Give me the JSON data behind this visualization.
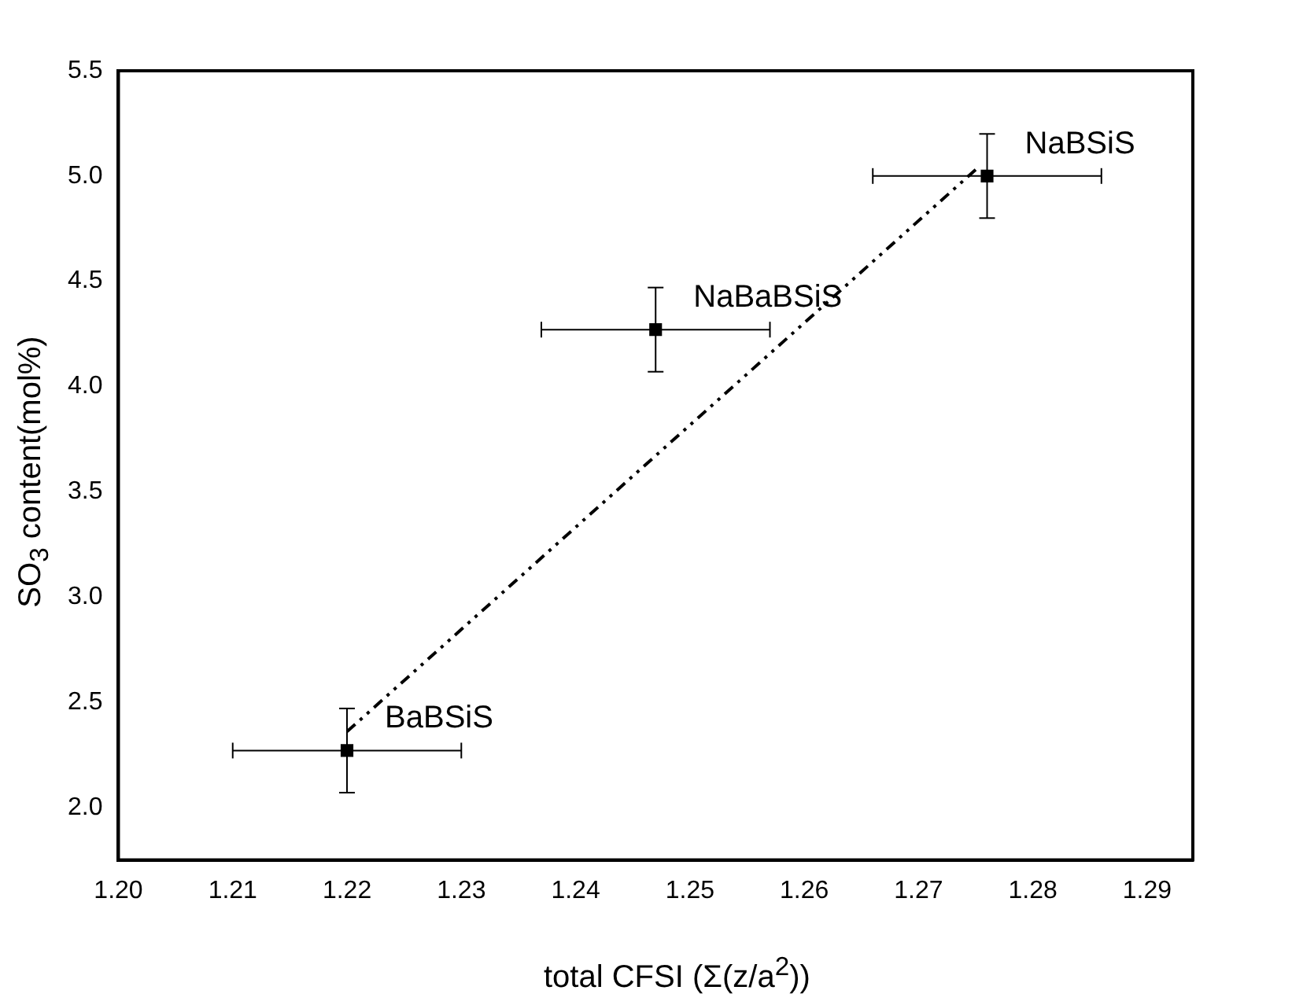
{
  "chart_data": {
    "type": "scatter",
    "xlabel": "total CFSI (Σ(z/a$^{2}$))",
    "ylabel": "SO$_{3}$ content(mol%)",
    "xlim": [
      1.2,
      1.294
    ],
    "xticks": [
      {
        "value": 1.2,
        "label": "1.20"
      },
      {
        "value": 1.21,
        "label": "1.21"
      },
      {
        "value": 1.22,
        "label": "1.22"
      },
      {
        "value": 1.23,
        "label": "1.23"
      },
      {
        "value": 1.24,
        "label": "1.24"
      },
      {
        "value": 1.25,
        "label": "1.25"
      },
      {
        "value": 1.26,
        "label": "1.26"
      },
      {
        "value": 1.27,
        "label": "1.27"
      },
      {
        "value": 1.28,
        "label": "1.28"
      },
      {
        "value": 1.29,
        "label": "1.29"
      }
    ],
    "ylim": [
      1.75,
      5.5
    ],
    "yticks": [
      {
        "value": 2,
        "label": "2.0"
      },
      2.5,
      {
        "value": 3,
        "label": "3.0"
      },
      3.5,
      {
        "value": 4,
        "label": "4.0"
      },
      4.5,
      {
        "value": 5,
        "label": "5.0"
      },
      5.5
    ],
    "grid": false,
    "legend": false,
    "marker": "square",
    "series": [
      {
        "color": "#000000",
        "x": [
          1.22,
          1.247,
          1.276
        ],
        "values": [
          2.27,
          4.27,
          5.0
        ],
        "errors": [
          0.2,
          0.2,
          0.2
        ],
        "xerrors": [
          0.01,
          0.01,
          0.01
        ]
      },
      {
        "type": "line",
        "color": "#000000",
        "line_style": "dashed",
        "marker": "none",
        "x": [
          1.22,
          1.275
        ],
        "values": [
          2.36,
          5.03
        ]
      }
    ],
    "annotations": [
      {
        "text": "BaBSiS",
        "x": 1.22,
        "y": 2.27
      },
      {
        "text": "NaBaBSiS",
        "x": 1.247,
        "y": 4.27
      },
      {
        "text": "NaBSiS",
        "x": 1.276,
        "y": 5.0
      }
    ]
  }
}
